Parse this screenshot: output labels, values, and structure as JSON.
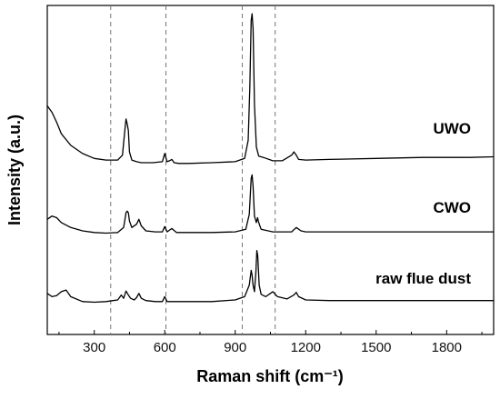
{
  "chart_data": {
    "type": "line",
    "title": "",
    "xlabel": "Raman shift (cm⁻¹)",
    "ylabel": "Intensity (a.u.)",
    "xlim": [
      100,
      2000
    ],
    "ylim": [
      0,
      10
    ],
    "x_ticks": [
      300,
      600,
      900,
      1200,
      1500,
      1800
    ],
    "y_ticks_shown": false,
    "grid": false,
    "reference_lines_x": [
      370,
      605,
      930,
      1070
    ],
    "series": [
      {
        "name": "UWO",
        "x": [
          100,
          120,
          140,
          160,
          200,
          250,
          300,
          350,
          400,
          420,
          430,
          435,
          440,
          445,
          450,
          460,
          480,
          500,
          550,
          590,
          600,
          610,
          620,
          630,
          640,
          660,
          700,
          800,
          900,
          940,
          955,
          962,
          968,
          972,
          976,
          982,
          990,
          1000,
          1020,
          1060,
          1100,
          1140,
          1150,
          1160,
          1170,
          1200,
          1300,
          1500,
          1700,
          1900,
          2000
        ],
        "y": [
          6.95,
          6.75,
          6.45,
          6.1,
          5.75,
          5.5,
          5.35,
          5.3,
          5.3,
          5.45,
          6.2,
          6.55,
          6.4,
          6.2,
          5.55,
          5.3,
          5.25,
          5.22,
          5.22,
          5.25,
          5.5,
          5.25,
          5.28,
          5.32,
          5.22,
          5.2,
          5.2,
          5.22,
          5.25,
          5.35,
          5.9,
          7.5,
          9.55,
          9.75,
          9.3,
          7.0,
          5.7,
          5.42,
          5.38,
          5.28,
          5.28,
          5.45,
          5.55,
          5.45,
          5.32,
          5.3,
          5.32,
          5.35,
          5.38,
          5.38,
          5.4
        ]
      },
      {
        "name": "CWO",
        "x": [
          100,
          120,
          140,
          160,
          200,
          250,
          300,
          350,
          400,
          425,
          435,
          440,
          445,
          450,
          460,
          480,
          490,
          500,
          520,
          560,
          590,
          600,
          610,
          630,
          650,
          700,
          800,
          900,
          945,
          960,
          968,
          972,
          976,
          982,
          990,
          995,
          1000,
          1010,
          1060,
          1140,
          1160,
          1180,
          1200,
          1300,
          1500,
          1700,
          1900,
          2000
        ],
        "y": [
          3.5,
          3.6,
          3.55,
          3.4,
          3.25,
          3.15,
          3.1,
          3.08,
          3.1,
          3.25,
          3.7,
          3.75,
          3.7,
          3.45,
          3.25,
          3.35,
          3.5,
          3.3,
          3.15,
          3.12,
          3.12,
          3.28,
          3.12,
          3.22,
          3.1,
          3.1,
          3.1,
          3.12,
          3.2,
          3.65,
          4.75,
          4.85,
          4.5,
          3.6,
          3.4,
          3.55,
          3.4,
          3.2,
          3.12,
          3.12,
          3.25,
          3.15,
          3.12,
          3.12,
          3.12,
          3.12,
          3.12,
          3.12
        ]
      },
      {
        "name": "raw flue dust",
        "x": [
          100,
          120,
          140,
          160,
          180,
          200,
          250,
          300,
          350,
          400,
          415,
          425,
          435,
          445,
          455,
          470,
          480,
          490,
          500,
          520,
          560,
          590,
          600,
          610,
          640,
          700,
          800,
          900,
          940,
          960,
          968,
          972,
          976,
          982,
          988,
          992,
          996,
          1002,
          1010,
          1030,
          1050,
          1060,
          1080,
          1120,
          1150,
          1160,
          1170,
          1200,
          1300,
          1500,
          1700,
          1900,
          2000
        ],
        "y": [
          1.25,
          1.15,
          1.18,
          1.3,
          1.35,
          1.15,
          1.0,
          0.98,
          1.0,
          1.05,
          1.2,
          1.1,
          1.32,
          1.2,
          1.1,
          1.05,
          1.12,
          1.25,
          1.1,
          1.03,
          1.0,
          1.0,
          1.15,
          1.0,
          1.0,
          1.0,
          1.0,
          1.05,
          1.15,
          1.5,
          1.95,
          1.8,
          1.5,
          1.3,
          1.9,
          2.55,
          2.4,
          1.5,
          1.22,
          1.15,
          1.25,
          1.3,
          1.15,
          1.08,
          1.2,
          1.28,
          1.15,
          1.05,
          1.03,
          1.03,
          1.03,
          1.03,
          1.03
        ]
      }
    ]
  }
}
